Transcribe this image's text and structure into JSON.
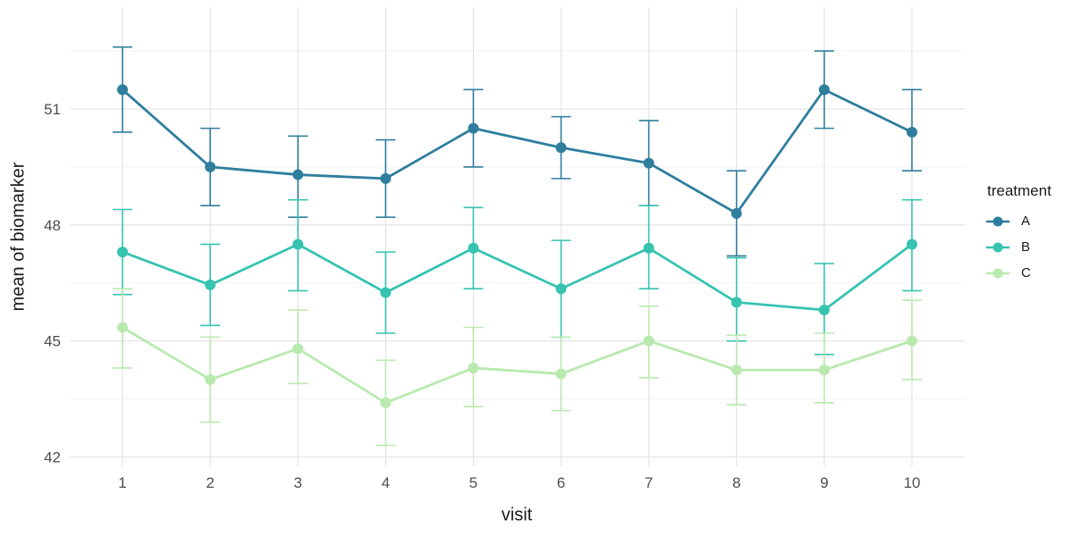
{
  "figure": {
    "background": "#ffffff",
    "grid_major_color": "#e6e6e6",
    "grid_minor_color": "#f2f2f2",
    "tick_label_color": "#4d4d4d",
    "axis_title_color": "#1a1a1a"
  },
  "chart_data": {
    "type": "line",
    "title": "",
    "xlabel": "visit",
    "ylabel": "mean of biomarker",
    "x": [
      1,
      2,
      3,
      4,
      5,
      6,
      7,
      8,
      9,
      10
    ],
    "xticks": [
      "1",
      "2",
      "3",
      "4",
      "5",
      "6",
      "7",
      "8",
      "9",
      "10"
    ],
    "yticks": [
      42,
      45,
      48,
      51
    ],
    "yticks_minor": [
      43.5,
      46.5,
      49.5,
      52.5
    ],
    "ylim": [
      41.8,
      53.6
    ],
    "grid": true,
    "error_bars": true,
    "legend": {
      "title": "treatment",
      "position": "right"
    },
    "series": [
      {
        "name": "A",
        "color": "#2f7e9d",
        "values": [
          51.5,
          49.5,
          49.3,
          49.2,
          50.5,
          50.0,
          49.6,
          48.3,
          51.5,
          50.4
        ],
        "error_low": [
          50.4,
          48.5,
          48.2,
          48.2,
          49.5,
          49.2,
          48.5,
          47.2,
          50.5,
          49.4
        ],
        "error_high": [
          52.6,
          50.5,
          50.3,
          50.2,
          51.5,
          50.8,
          50.7,
          49.4,
          52.5,
          51.5
        ]
      },
      {
        "name": "B",
        "color": "#36c3b0",
        "values": [
          47.3,
          46.45,
          47.5,
          46.25,
          47.4,
          46.35,
          47.4,
          46.0,
          45.8,
          47.5
        ],
        "error_low": [
          46.2,
          45.4,
          46.3,
          45.2,
          46.35,
          45.1,
          46.35,
          45.0,
          44.65,
          46.3
        ],
        "error_high": [
          48.4,
          47.5,
          48.65,
          47.3,
          48.45,
          47.6,
          48.5,
          47.15,
          47.0,
          48.65
        ]
      },
      {
        "name": "C",
        "color": "#b9e9af",
        "values": [
          45.35,
          44.0,
          44.8,
          43.4,
          44.3,
          44.15,
          45.0,
          44.25,
          44.25,
          45.0
        ],
        "error_low": [
          44.3,
          42.9,
          43.9,
          42.3,
          43.3,
          43.2,
          44.05,
          43.35,
          43.4,
          44.0
        ],
        "error_high": [
          46.35,
          45.1,
          45.8,
          44.5,
          45.35,
          45.1,
          45.9,
          45.15,
          45.2,
          46.05
        ]
      }
    ]
  }
}
